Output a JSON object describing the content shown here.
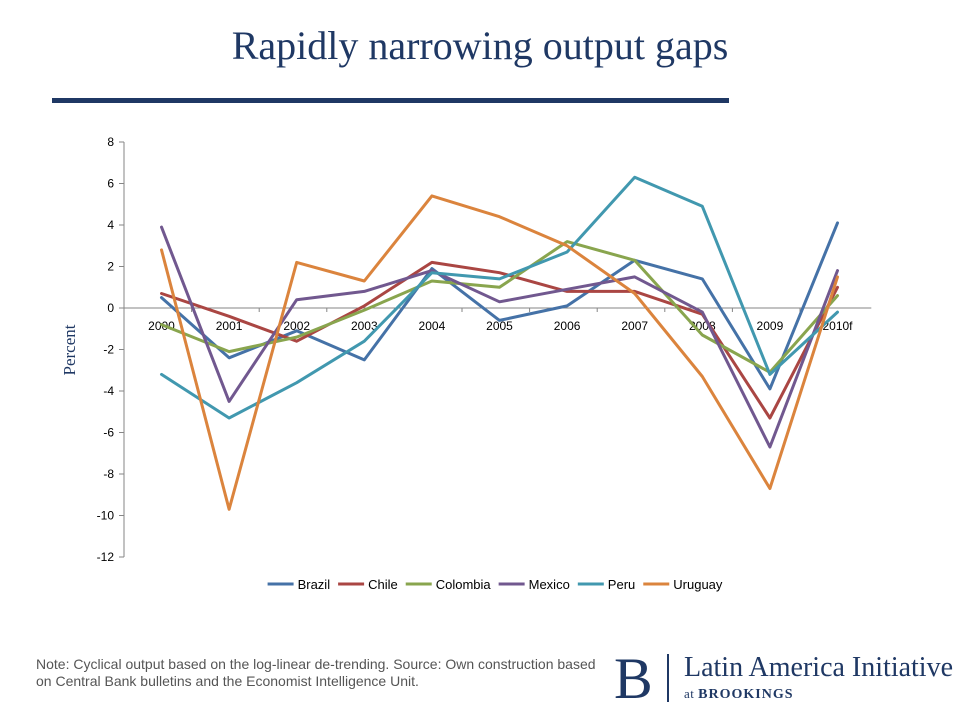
{
  "slide": {
    "title": "Rapidly narrowing output gaps",
    "note": "Note: Cyclical output based on the log-linear de-trending. Source: Own construction based on Central Bank bulletins and the Economist Intelligence Unit."
  },
  "logo": {
    "mark": "B",
    "name": "Latin America Initiative",
    "sub_prefix": "at",
    "sub_org": "BROOKINGS",
    "color": "#1f3864"
  },
  "chart_data": {
    "type": "line",
    "ylabel": "Percent",
    "ylim": [
      -12,
      8
    ],
    "yticks": [
      8,
      6,
      4,
      2,
      0,
      -2,
      -4,
      -6,
      -8,
      -10,
      -12
    ],
    "categories": [
      "2000",
      "2001",
      "2002",
      "2003",
      "2004",
      "2005",
      "2006",
      "2007",
      "2008",
      "2009",
      "2010f"
    ],
    "legend_position": "bottom",
    "grid": false,
    "series": [
      {
        "name": "Brazil",
        "color": "#4572a7",
        "values": [
          0.5,
          -2.4,
          -1.1,
          -2.5,
          1.9,
          -0.6,
          0.1,
          2.3,
          1.4,
          -3.9,
          4.1
        ]
      },
      {
        "name": "Chile",
        "color": "#aa4643",
        "values": [
          0.7,
          -0.4,
          -1.6,
          0.1,
          2.2,
          1.7,
          0.8,
          0.8,
          -0.3,
          -5.3,
          1.0
        ]
      },
      {
        "name": "Colombia",
        "color": "#89a54e",
        "values": [
          -0.8,
          -2.1,
          -1.4,
          -0.1,
          1.3,
          1.0,
          3.2,
          2.3,
          -1.3,
          -3.1,
          0.6
        ]
      },
      {
        "name": "Mexico",
        "color": "#71588f",
        "values": [
          3.9,
          -4.5,
          0.4,
          0.8,
          1.8,
          0.3,
          0.9,
          1.5,
          -0.2,
          -6.7,
          1.8
        ]
      },
      {
        "name": "Peru",
        "color": "#4198af",
        "values": [
          -3.2,
          -5.3,
          -3.6,
          -1.6,
          1.7,
          1.4,
          2.7,
          6.3,
          4.9,
          -3.2,
          -0.2
        ]
      },
      {
        "name": "Uruguay",
        "color": "#db843d",
        "values": [
          2.8,
          -9.7,
          2.2,
          1.3,
          5.4,
          4.4,
          3.0,
          0.7,
          -3.3,
          -8.7,
          1.5
        ]
      }
    ]
  }
}
